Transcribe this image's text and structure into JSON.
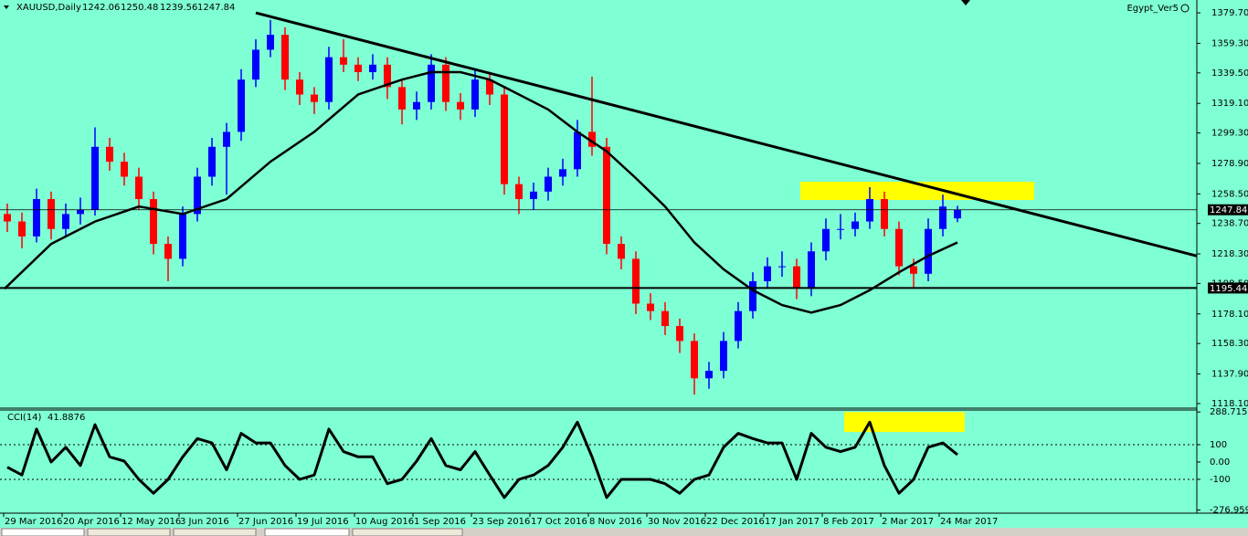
{
  "chart_data": [
    {
      "type": "candlestick",
      "symbol": "XAUUSD,Daily",
      "watermark": "Egypt_Ver5",
      "background": "#7fffd4",
      "up_color": "#0000ff",
      "down_color": "#ff0000",
      "xlim": [
        0,
        327.5
      ],
      "ylim": [
        1115,
        1388.3
      ],
      "xticks": [
        {
          "value": 1,
          "label": "29 Mar 2016"
        },
        {
          "value": 17,
          "label": "20 Apr 2016"
        },
        {
          "value": 33,
          "label": "12 May 2016"
        },
        {
          "value": 49,
          "label": "3 Jun 2016"
        },
        {
          "value": 65,
          "label": "27 Jun 2016"
        },
        {
          "value": 81,
          "label": "19 Jul 2016"
        },
        {
          "value": 97,
          "label": "10 Aug 2016"
        },
        {
          "value": 113,
          "label": "1 Sep 2016"
        },
        {
          "value": 129,
          "label": "23 Sep 2016"
        },
        {
          "value": 145,
          "label": "17 Oct 2016"
        },
        {
          "value": 161,
          "label": "8 Nov 2016"
        },
        {
          "value": 177,
          "label": "30 Nov 2016"
        },
        {
          "value": 193,
          "label": "22 Dec 2016"
        },
        {
          "value": 209,
          "label": "17 Jan 2017"
        },
        {
          "value": 225,
          "label": "8 Feb 2017"
        },
        {
          "value": 241,
          "label": "2 Mar 2017"
        },
        {
          "value": 257,
          "label": "24 Mar 2017"
        }
      ],
      "yticks": [
        {
          "value": 1379.7,
          "label": "1379.70"
        },
        {
          "value": 1359.3,
          "label": "1359.30"
        },
        {
          "value": 1339.5,
          "label": "1339.50"
        },
        {
          "value": 1319.1,
          "label": "1319.10"
        },
        {
          "value": 1299.3,
          "label": "1299.30"
        },
        {
          "value": 1278.9,
          "label": "1278.90"
        },
        {
          "value": 1258.5,
          "label": "1258.50"
        },
        {
          "value": 1238.7,
          "label": "1238.70"
        },
        {
          "value": 1218.3,
          "label": "1218.30"
        },
        {
          "value": 1198.5,
          "label": "1198.50"
        },
        {
          "value": 1178.1,
          "label": "1178.10"
        },
        {
          "value": 1158.3,
          "label": "1158.30"
        },
        {
          "value": 1137.9,
          "label": "1137.90"
        },
        {
          "value": 1118.1,
          "label": "1118.10"
        }
      ],
      "x": [
        2,
        6,
        10,
        14,
        18,
        22,
        26,
        30,
        34,
        38,
        42,
        46,
        50,
        54,
        58,
        62,
        66,
        70,
        74,
        78,
        82,
        86,
        90,
        94,
        98,
        102,
        106,
        110,
        114,
        118,
        122,
        126,
        130,
        134,
        138,
        142,
        146,
        150,
        154,
        158,
        162,
        166,
        170,
        174,
        178,
        182,
        186,
        190,
        194,
        198,
        202,
        206,
        210,
        214,
        218,
        222,
        226,
        230,
        234,
        238,
        242,
        246,
        250,
        254,
        258,
        262
      ],
      "open": [
        1245,
        1240,
        1230,
        1255,
        1235,
        1245,
        1248,
        1290,
        1280,
        1270,
        1255,
        1225,
        1215,
        1245,
        1270,
        1290,
        1300,
        1335,
        1355,
        1365,
        1335,
        1325,
        1320,
        1350,
        1345,
        1340,
        1345,
        1330,
        1315,
        1320,
        1345,
        1320,
        1315,
        1335,
        1325,
        1265,
        1255,
        1260,
        1270,
        1275,
        1300,
        1290,
        1225,
        1215,
        1185,
        1180,
        1170,
        1160,
        1135,
        1140,
        1160,
        1180,
        1200,
        1210,
        1210,
        1195,
        1220,
        1235,
        1235,
        1240,
        1255,
        1235,
        1210,
        1205,
        1235,
        1242.06
      ],
      "high": [
        1252,
        1246,
        1262,
        1260,
        1252,
        1256,
        1303,
        1296,
        1286,
        1276,
        1260,
        1230,
        1250,
        1276,
        1296,
        1306,
        1342,
        1362,
        1375,
        1370,
        1340,
        1330,
        1357,
        1362,
        1350,
        1352,
        1350,
        1335,
        1327,
        1352,
        1350,
        1326,
        1342,
        1340,
        1330,
        1270,
        1266,
        1276,
        1282,
        1308,
        1337,
        1296,
        1230,
        1220,
        1192,
        1186,
        1175,
        1165,
        1146,
        1166,
        1186,
        1206,
        1216,
        1220,
        1215,
        1226,
        1242,
        1245,
        1246,
        1263,
        1260,
        1240,
        1215,
        1242,
        1258,
        1250.48
      ],
      "low": [
        1233,
        1222,
        1226,
        1228,
        1230,
        1238,
        1244,
        1274,
        1264,
        1248,
        1218,
        1200,
        1210,
        1240,
        1264,
        1258,
        1294,
        1330,
        1350,
        1328,
        1318,
        1312,
        1315,
        1340,
        1334,
        1335,
        1322,
        1305,
        1308,
        1315,
        1314,
        1308,
        1310,
        1318,
        1258,
        1245,
        1248,
        1254,
        1264,
        1270,
        1284,
        1218,
        1208,
        1178,
        1174,
        1164,
        1152,
        1124,
        1128,
        1135,
        1155,
        1175,
        1195,
        1203,
        1188,
        1190,
        1214,
        1228,
        1230,
        1235,
        1230,
        1204,
        1196,
        1200,
        1230,
        1239.56
      ],
      "close": [
        1240,
        1230,
        1255,
        1235,
        1245,
        1248,
        1290,
        1280,
        1270,
        1255,
        1225,
        1215,
        1245,
        1270,
        1290,
        1300,
        1335,
        1355,
        1365,
        1335,
        1325,
        1320,
        1350,
        1345,
        1340,
        1345,
        1330,
        1315,
        1320,
        1345,
        1320,
        1315,
        1335,
        1325,
        1265,
        1255,
        1260,
        1270,
        1275,
        1300,
        1290,
        1225,
        1215,
        1185,
        1180,
        1170,
        1160,
        1135,
        1140,
        1160,
        1180,
        1200,
        1210,
        1210,
        1195,
        1220,
        1235,
        1235,
        1240,
        1255,
        1235,
        1210,
        1205,
        1235,
        1250,
        1247.84
      ],
      "ma": {
        "color": "#000000",
        "x": [
          1.25,
          14,
          26,
          38,
          50,
          62,
          74,
          86,
          98,
          110,
          118,
          126,
          134,
          142,
          150,
          158,
          166,
          174,
          182,
          190,
          198,
          206,
          214,
          222,
          230,
          238,
          246,
          254,
          262
        ],
        "values": [
          1195,
          1225,
          1240,
          1250,
          1245,
          1255,
          1280,
          1300,
          1325,
          1335,
          1340,
          1340,
          1335,
          1325,
          1315,
          1300,
          1287,
          1269,
          1250,
          1226,
          1208,
          1194,
          1184,
          1179,
          1184,
          1194,
          1206,
          1217,
          1226
        ]
      },
      "trendline": {
        "x": [
          70,
          327.5
        ],
        "values": [
          1379.7,
          1216.9
        ]
      },
      "hline": 1195.44,
      "highlight": {
        "color": "#ffff00",
        "x": [
          219,
          283
        ],
        "y": [
          1254.4,
          1266.6
        ]
      }
    },
    {
      "type": "line",
      "name": "CCI(14)",
      "color": "#000000",
      "ylim": [
        -295,
        300
      ],
      "yticks": [
        288.7157,
        100,
        {
          "value": 0,
          "label": "0.00"
        },
        -100,
        -276.9596
      ],
      "levels": [
        100,
        -100
      ],
      "x": [
        2,
        6,
        10,
        14,
        18,
        22,
        26,
        30,
        34,
        38,
        42,
        46,
        50,
        54,
        58,
        62,
        66,
        70,
        74,
        78,
        82,
        86,
        90,
        94,
        98,
        102,
        106,
        110,
        114,
        118,
        122,
        126,
        130,
        134,
        138,
        142,
        146,
        150,
        154,
        158,
        162,
        166,
        170,
        174,
        178,
        182,
        186,
        190,
        194,
        198,
        202,
        206,
        210,
        214,
        218,
        222,
        226,
        230,
        234,
        238,
        242,
        246,
        250,
        254,
        258,
        262
      ],
      "values": [
        -30,
        -75,
        190,
        0,
        85,
        -20,
        215,
        30,
        5,
        -100,
        -180,
        -100,
        30,
        135,
        110,
        -45,
        165,
        110,
        110,
        -20,
        -100,
        -75,
        190,
        60,
        30,
        30,
        -125,
        -100,
        5,
        135,
        -20,
        -45,
        60,
        -75,
        -205,
        -100,
        -75,
        -20,
        85,
        230,
        30,
        -205,
        -100,
        -100,
        -100,
        -125,
        -180,
        -100,
        -75,
        85,
        165,
        135,
        110,
        110,
        -100,
        165,
        85,
        60,
        85,
        230,
        -20,
        -180,
        -100,
        85,
        110,
        41.8876
      ],
      "highlight": {
        "color": "#ffff00",
        "x": [
          231,
          264
        ],
        "y": [
          173,
          288
        ]
      }
    }
  ]
}
